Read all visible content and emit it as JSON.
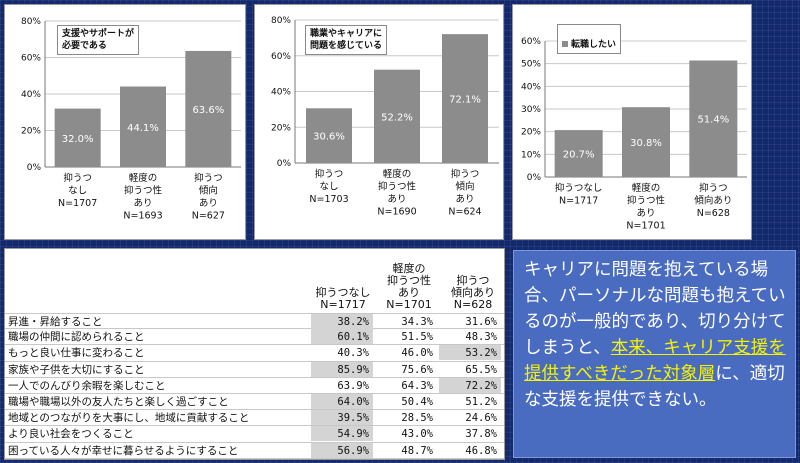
{
  "chart_data": [
    {
      "type": "bar",
      "legend": "支援やサポートが\n必要である",
      "categories": [
        "抑うつ\nなし\nN=1707",
        "軽度の\n抑うつ性\nあり\nN=1693",
        "抑うつ\n傾向\nあり\nN=627"
      ],
      "values": [
        32.0,
        44.1,
        63.6
      ],
      "value_labels": [
        "32.0%",
        "44.1%",
        "63.6%"
      ],
      "ylim": [
        0,
        80
      ],
      "yticks": [
        "0%",
        "20%",
        "40%",
        "60%",
        "80%"
      ],
      "ytick_values": [
        0,
        20,
        40,
        60,
        80
      ],
      "grid": true,
      "bar_color": "#8c8c8c"
    },
    {
      "type": "bar",
      "legend": "職業やキャリアに\n問題を感じている",
      "categories": [
        "抑うつ\nなし\nN=1703",
        "軽度の\n抑うつ性\nあり\nN=1690",
        "抑うつ\n傾向\nあり\nN=624"
      ],
      "values": [
        30.6,
        52.2,
        72.1
      ],
      "value_labels": [
        "30.6%",
        "52.2%",
        "72.1%"
      ],
      "ylim": [
        0,
        80
      ],
      "yticks": [
        "0%",
        "20%",
        "40%",
        "60%",
        "80%"
      ],
      "ytick_values": [
        0,
        20,
        40,
        60,
        80
      ],
      "grid": true,
      "bar_color": "#8c8c8c"
    },
    {
      "type": "bar",
      "legend": "転職したい",
      "categories": [
        "抑うつなし\nN=1717",
        "軽度の\n抑うつ性\nあり\nN=1701",
        "抑うつ\n傾向あり\nN=628"
      ],
      "values": [
        20.7,
        30.8,
        51.4
      ],
      "value_labels": [
        "20.7%",
        "30.8%",
        "51.4%"
      ],
      "ylim": [
        0,
        60
      ],
      "yticks": [
        "0%",
        "10%",
        "20%",
        "30%",
        "40%",
        "50%",
        "60%"
      ],
      "ytick_values": [
        0,
        10,
        20,
        30,
        40,
        50,
        60
      ],
      "grid": true,
      "bar_color": "#8c8c8c"
    },
    {
      "type": "table",
      "columns": [
        "抑うつなし\nN=1717",
        "軽度の\n抑うつ性\nあり\nN=1701",
        "抑うつ\n傾向あり\nN=628"
      ],
      "rows": [
        {
          "label": "昇進・昇給すること",
          "values": [
            "38.2%",
            "34.3%",
            "31.6%"
          ],
          "highlight": 0
        },
        {
          "label": "職場の仲間に認められること",
          "values": [
            "60.1%",
            "51.5%",
            "48.3%"
          ],
          "highlight": 0
        },
        {
          "label": "もっと良い仕事に変わること",
          "values": [
            "40.3%",
            "46.0%",
            "53.2%"
          ],
          "highlight": 2
        },
        {
          "label": "家族や子供を大切にすること",
          "values": [
            "85.9%",
            "75.6%",
            "65.5%"
          ],
          "highlight": 0
        },
        {
          "label": "一人でのんびり余暇を楽しむこと",
          "values": [
            "63.9%",
            "64.3%",
            "72.2%"
          ],
          "highlight": 2
        },
        {
          "label": "職場や職場以外の友人たちと楽しく過ごすこと",
          "values": [
            "64.0%",
            "50.4%",
            "51.2%"
          ],
          "highlight": 0
        },
        {
          "label": "地域とのつながりを大事にし、地域に貢献すること",
          "values": [
            "39.5%",
            "28.5%",
            "24.6%"
          ],
          "highlight": 0
        },
        {
          "label": "より良い社会をつくること",
          "values": [
            "54.9%",
            "43.0%",
            "37.8%"
          ],
          "highlight": 0
        },
        {
          "label": "困っている人々が幸せに暮らせるようにすること",
          "values": [
            "56.9%",
            "48.7%",
            "46.8%"
          ],
          "highlight": 0
        }
      ]
    }
  ],
  "message": {
    "part1": "キャリアに問題を抱えている場合、パーソナルな問題も抱えているのが一般的であり、切り分けてしまうと、",
    "highlight": "本来、キャリア支援を提供すべきだった対象層",
    "part2": "に、適切な支援を提供できない。"
  },
  "colors": {
    "background": "#13296e",
    "bar": "#8c8c8c",
    "table_highlight": "#d4d4d4",
    "message_box": "#4a6cc0",
    "message_highlight": "#f6f300"
  }
}
